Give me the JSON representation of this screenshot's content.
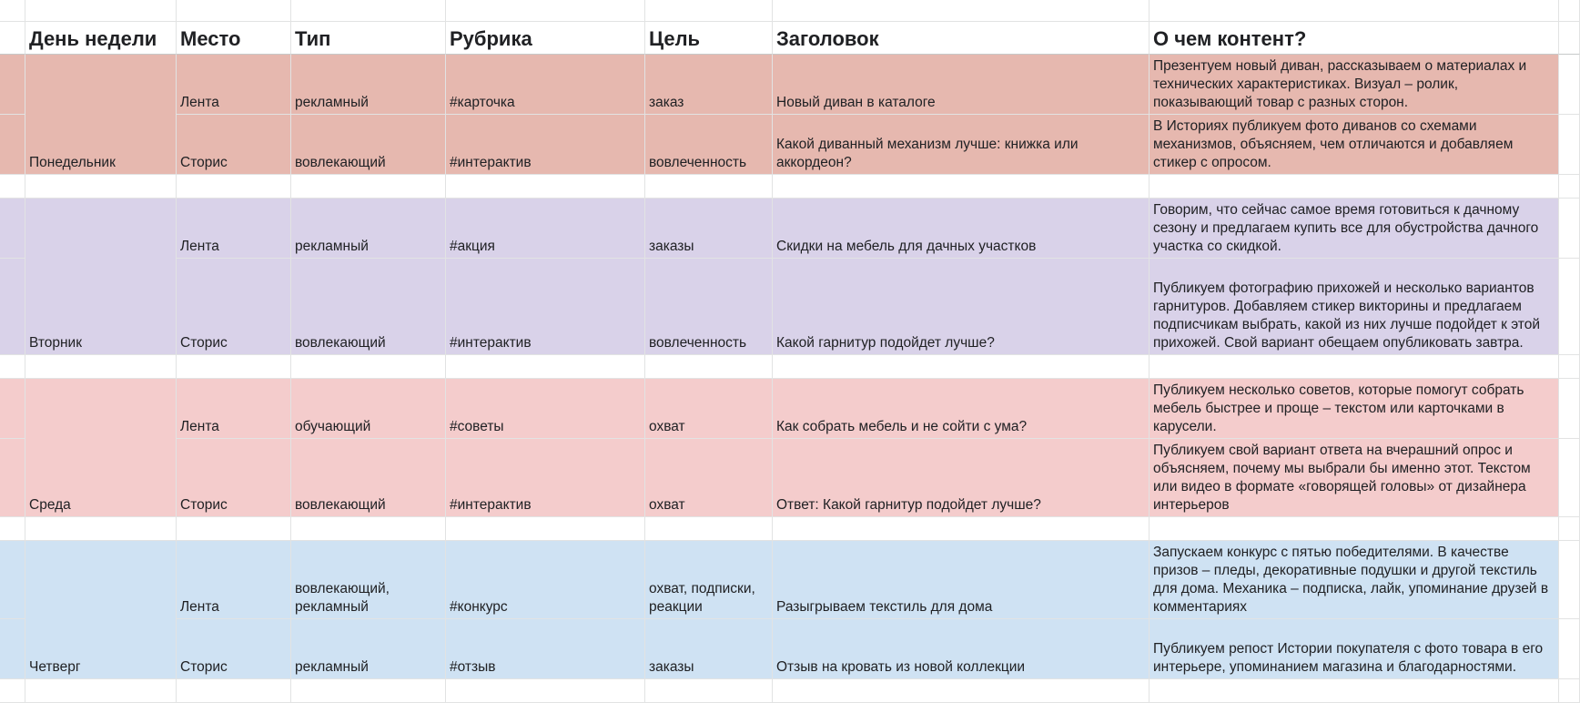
{
  "colors": {
    "monday": "#e6b8af",
    "tuesday": "#d9d2e9",
    "wednesday": "#f4cccc",
    "thursday": "#cfe2f3",
    "gridline": "#e2e3e3"
  },
  "headers": {
    "day": "День недели",
    "place": "Место",
    "type": "Тип",
    "rubric": "Рубрика",
    "goal": "Цель",
    "title": "Заголовок",
    "content": "О чем контент?"
  },
  "days": [
    {
      "day": "Понедельник",
      "color": "#e6b8af",
      "posts": [
        {
          "place": "Лента",
          "type": "рекламный",
          "rubric": "#карточка",
          "goal": "заказ",
          "title": "Новый диван в каталоге",
          "content": "Презентуем новый диван, рассказываем о материалах и технических характеристиках. Визуал – ролик, показывающий товар с разных сторон."
        },
        {
          "place": "Сторис",
          "type": "вовлекающий",
          "rubric": "#интерактив",
          "goal": "вовлеченность",
          "title": "Какой диванный механизм лучше: книжка или аккордеон?",
          "content": "В Историях публикуем фото диванов со схемами механизмов, объясняем, чем отличаются и добавляем стикер с опросом."
        }
      ]
    },
    {
      "day": "Вторник",
      "color": "#d9d2e9",
      "posts": [
        {
          "place": "Лента",
          "type": "рекламный",
          "rubric": "#акция",
          "goal": "заказы",
          "title": "Скидки на мебель для дачных участков",
          "content": "Говорим, что сейчас самое время готовиться к дачному сезону и предлагаем купить все для обустройства дачного участка со скидкой."
        },
        {
          "place": "Сторис",
          "type": "вовлекающий",
          "rubric": "#интерактив",
          "goal": "вовлеченность",
          "title": "Какой гарнитур подойдет лучше?",
          "content": "Публикуем фотографию прихожей и несколько вариантов гарнитуров. Добавляем стикер викторины и предлагаем подписчикам выбрать, какой из них лучше подойдет к этой прихожей. Свой вариант обещаем опубликовать завтра."
        }
      ]
    },
    {
      "day": "Среда",
      "color": "#f4cccc",
      "posts": [
        {
          "place": "Лента",
          "type": "обучающий",
          "rubric": "#советы",
          "goal": "охват",
          "title": "Как собрать мебель и не сойти с ума?",
          "content": "Публикуем несколько советов, которые помогут собрать мебель быстрее и проще – текстом или карточками в карусели."
        },
        {
          "place": "Сторис",
          "type": "вовлекающий",
          "rubric": "#интерактив",
          "goal": "охват",
          "title": "Ответ: Какой гарнитур подойдет лучше?",
          "content": "Публикуем свой вариант ответа на вчерашний опрос и объясняем, почему мы выбрали бы именно этот. Текстом или видео в формате «говорящей головы» от дизайнера интерьеров"
        }
      ]
    },
    {
      "day": "Четверг",
      "color": "#cfe2f3",
      "posts": [
        {
          "place": "Лента",
          "type": "вовлекающий, рекламный",
          "rubric": "#конкурс",
          "goal": "охват, подписки, реакции",
          "title": "Разыгрываем текстиль для дома",
          "content": "Запускаем конкурс с пятью победителями. В качестве призов – пледы, декоративные подушки и другой текстиль для дома. Механика – подписка, лайк, упоминание друзей в комментариях"
        },
        {
          "place": "Сторис",
          "type": "рекламный",
          "rubric": "#отзыв",
          "goal": "заказы",
          "title": "Отзыв на кровать из новой коллекции",
          "content": "Публикуем репост Истории покупателя с фото товара в его интерьере, упоминанием магазина и благодарностями."
        }
      ]
    }
  ]
}
